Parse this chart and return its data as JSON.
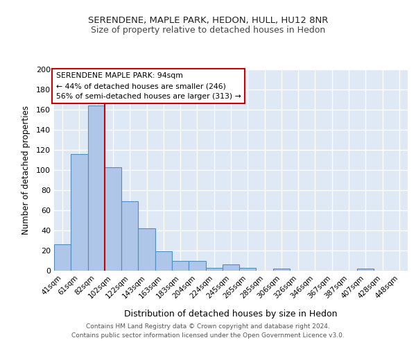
{
  "title1": "SERENDENE, MAPLE PARK, HEDON, HULL, HU12 8NR",
  "title2": "Size of property relative to detached houses in Hedon",
  "xlabel": "Distribution of detached houses by size in Hedon",
  "ylabel": "Number of detached properties",
  "footer1": "Contains HM Land Registry data © Crown copyright and database right 2024.",
  "footer2": "Contains public sector information licensed under the Open Government Licence v3.0.",
  "annotation_line1": "SERENDENE MAPLE PARK: 94sqm",
  "annotation_line2": "← 44% of detached houses are smaller (246)",
  "annotation_line3": "56% of semi-detached houses are larger (313) →",
  "bar_labels": [
    "41sqm",
    "61sqm",
    "82sqm",
    "102sqm",
    "122sqm",
    "143sqm",
    "163sqm",
    "183sqm",
    "204sqm",
    "224sqm",
    "245sqm",
    "265sqm",
    "285sqm",
    "306sqm",
    "326sqm",
    "346sqm",
    "367sqm",
    "387sqm",
    "407sqm",
    "428sqm",
    "448sqm"
  ],
  "bar_values": [
    26,
    116,
    164,
    103,
    69,
    42,
    19,
    10,
    10,
    3,
    6,
    3,
    0,
    2,
    0,
    0,
    0,
    0,
    2,
    0,
    0
  ],
  "bar_width": 1.0,
  "bar_color": "#aec6e8",
  "bar_edge_color": "#4f8fc0",
  "vline_x": 2.5,
  "vline_color": "#cc0000",
  "ylim": [
    0,
    200
  ],
  "yticks": [
    0,
    20,
    40,
    60,
    80,
    100,
    120,
    140,
    160,
    180,
    200
  ],
  "background_color": "#dfe8f5",
  "grid_color": "#ffffff",
  "annotation_box_color": "#ffffff",
  "annotation_box_edge": "#cc0000"
}
